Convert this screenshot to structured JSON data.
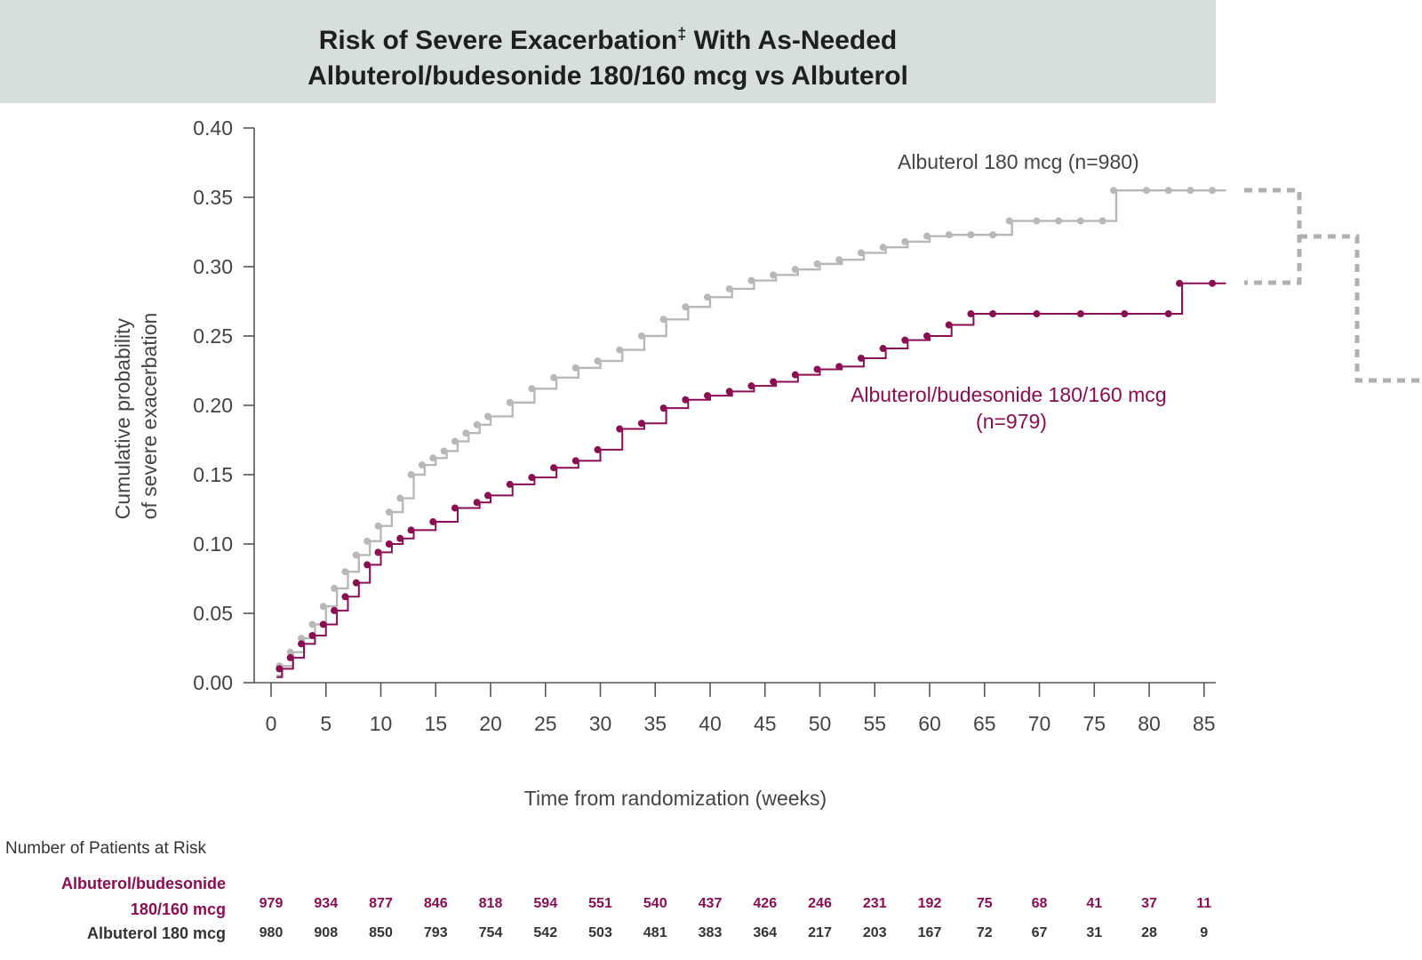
{
  "header": {
    "title_line1": "Risk of Severe Exacerbation",
    "title_mark": "‡",
    "title_line1_rest": " With As-Needed",
    "title_line2": "Albuterol/budesonide 180/160 mcg vs Albuterol"
  },
  "colors": {
    "albuterol": "#b8b8b8",
    "combo": "#8b0d52",
    "banner": "#d6dfdb",
    "axis": "#555555"
  },
  "chart_data": {
    "type": "line",
    "title": "Risk of Severe Exacerbation‡ With As-Needed Albuterol/budesonide 180/160 mcg vs Albuterol",
    "xlabel": "Time from randomization (weeks)",
    "ylabel_line1": "Cumulative probability",
    "ylabel_line2": "of severe exacerbation",
    "xlim": [
      0,
      87
    ],
    "ylim": [
      0,
      0.4
    ],
    "x_ticks": [
      0,
      5,
      10,
      15,
      20,
      25,
      30,
      35,
      40,
      45,
      50,
      55,
      60,
      65,
      70,
      75,
      80,
      85
    ],
    "y_ticks": [
      "0.00",
      "0.05",
      "0.10",
      "0.15",
      "0.20",
      "0.25",
      "0.30",
      "0.35",
      "0.40"
    ],
    "grid": false,
    "step": true,
    "series": [
      {
        "name_line1": "Albuterol 180 mcg (n=980)",
        "name_line2": "",
        "color": "#b8b8b8",
        "x": [
          0.5,
          1,
          2,
          3,
          4,
          5,
          6,
          7,
          8,
          9,
          10,
          11,
          12,
          13,
          14,
          15,
          16,
          17,
          18,
          19,
          20,
          22,
          24,
          26,
          28,
          30,
          32,
          34,
          36,
          38,
          40,
          42,
          44,
          46,
          48,
          50,
          52,
          54,
          56,
          58,
          60,
          62,
          64,
          66,
          67.5,
          70,
          72,
          74,
          76,
          77,
          80,
          82,
          84,
          86
        ],
        "y": [
          0.005,
          0.012,
          0.022,
          0.032,
          0.042,
          0.055,
          0.068,
          0.08,
          0.092,
          0.102,
          0.113,
          0.123,
          0.133,
          0.15,
          0.157,
          0.162,
          0.167,
          0.174,
          0.18,
          0.186,
          0.192,
          0.202,
          0.212,
          0.22,
          0.227,
          0.232,
          0.24,
          0.25,
          0.262,
          0.271,
          0.278,
          0.284,
          0.29,
          0.294,
          0.298,
          0.302,
          0.305,
          0.31,
          0.314,
          0.318,
          0.322,
          0.323,
          0.323,
          0.323,
          0.333,
          0.333,
          0.333,
          0.333,
          0.333,
          0.355,
          0.355,
          0.355,
          0.355,
          0.355
        ]
      },
      {
        "name_line1": "Albuterol/budesonide 180/160 mcg",
        "name_line2": "(n=979)",
        "color": "#8b0d52",
        "x": [
          0.5,
          1,
          2,
          3,
          4,
          5,
          6,
          7,
          8,
          9,
          10,
          11,
          12,
          13,
          15,
          17,
          19,
          20,
          22,
          24,
          26,
          28,
          30,
          32,
          34,
          36,
          38,
          40,
          42,
          44,
          46,
          48,
          50,
          52,
          54,
          56,
          58,
          60,
          62,
          64,
          66,
          70,
          74,
          78,
          82,
          83,
          86
        ],
        "y": [
          0.004,
          0.01,
          0.018,
          0.028,
          0.034,
          0.042,
          0.052,
          0.062,
          0.072,
          0.085,
          0.094,
          0.1,
          0.104,
          0.11,
          0.116,
          0.126,
          0.13,
          0.135,
          0.143,
          0.148,
          0.155,
          0.16,
          0.168,
          0.183,
          0.187,
          0.198,
          0.204,
          0.207,
          0.21,
          0.214,
          0.217,
          0.222,
          0.226,
          0.228,
          0.234,
          0.241,
          0.247,
          0.25,
          0.258,
          0.266,
          0.266,
          0.266,
          0.266,
          0.266,
          0.266,
          0.288,
          0.288
        ]
      }
    ]
  },
  "risk_table": {
    "heading": "Number of Patients at Risk",
    "combo_label_line1": "Albuterol/budesonide",
    "combo_label_line2": "180/160 mcg",
    "albuterol_label": "Albuterol 180 mcg",
    "combo_counts": [
      "979",
      "934",
      "877",
      "846",
      "818",
      "594",
      "551",
      "540",
      "437",
      "426",
      "246",
      "231",
      "192",
      "75",
      "68",
      "41",
      "37",
      "11"
    ],
    "albuterol_counts": [
      "980",
      "908",
      "850",
      "793",
      "754",
      "542",
      "503",
      "481",
      "383",
      "364",
      "217",
      "203",
      "167",
      "72",
      "67",
      "31",
      "28",
      "9"
    ]
  }
}
